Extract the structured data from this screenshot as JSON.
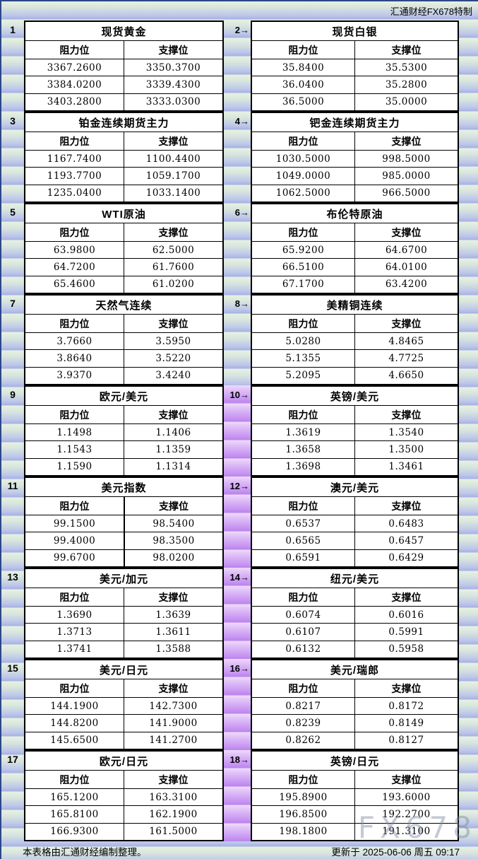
{
  "header": {
    "brand": "汇通财经FX678特制"
  },
  "labels": {
    "resistance": "阻力位",
    "support": "支撑位"
  },
  "footer": {
    "left": "本表格由汇通财经编制整理。",
    "updated": "更新于 2025-06-06 周五 09:17",
    "watermark": "FX678"
  },
  "colors": {
    "yellow_header": "#F7F28E",
    "blue_header_top": "#DFEAFC",
    "blue_header_bottom": "#9AB5E9",
    "purple_header": "#C79CEF",
    "gutter_purple": "#BB84EC",
    "background_green": "#E6F1E2",
    "background_blue": "#A7B2E5",
    "grid_line": "#000000",
    "watermark_gray": "#7E88A3"
  },
  "pairs": [
    {
      "left": {
        "num": "1",
        "title": "现货黄金",
        "style": "yellow",
        "rows": [
          [
            "3367.2600",
            "3350.3700"
          ],
          [
            "3384.0200",
            "3339.4300"
          ],
          [
            "3403.2800",
            "3333.0300"
          ]
        ]
      },
      "right": {
        "num": "2→",
        "title": "现货白银",
        "style": "yellow",
        "rows": [
          [
            "35.8400",
            "35.5300"
          ],
          [
            "36.0400",
            "35.2800"
          ],
          [
            "36.5000",
            "35.0000"
          ]
        ]
      }
    },
    {
      "left": {
        "num": "3",
        "title": "铂金连续期货主力",
        "style": "blue",
        "rows": [
          [
            "1167.7400",
            "1100.4400"
          ],
          [
            "1193.7700",
            "1059.1700"
          ],
          [
            "1235.0400",
            "1033.1400"
          ]
        ]
      },
      "right": {
        "num": "4→",
        "title": "钯金连续期货主力",
        "style": "blue",
        "rows": [
          [
            "1030.5000",
            "998.5000"
          ],
          [
            "1049.0000",
            "985.0000"
          ],
          [
            "1062.5000",
            "966.5000"
          ]
        ]
      }
    },
    {
      "left": {
        "num": "5",
        "title": "WTI原油",
        "style": "yellow",
        "rows": [
          [
            "63.9800",
            "62.5000"
          ],
          [
            "64.7200",
            "61.7600"
          ],
          [
            "65.4600",
            "61.0200"
          ]
        ]
      },
      "right": {
        "num": "6→",
        "title": "布伦特原油",
        "style": "yellow",
        "rows": [
          [
            "65.9200",
            "64.6700"
          ],
          [
            "66.5100",
            "64.0100"
          ],
          [
            "67.1700",
            "63.4200"
          ]
        ]
      }
    },
    {
      "left": {
        "num": "7",
        "title": "天然气连续",
        "style": "blue",
        "rows": [
          [
            "3.7660",
            "3.5950"
          ],
          [
            "3.8640",
            "3.5220"
          ],
          [
            "3.9370",
            "3.4240"
          ]
        ]
      },
      "right": {
        "num": "8→",
        "title": "美精铜连续",
        "style": "blue",
        "rows": [
          [
            "5.0280",
            "4.8465"
          ],
          [
            "5.1355",
            "4.7725"
          ],
          [
            "5.2095",
            "4.6650"
          ]
        ]
      }
    },
    {
      "left": {
        "num": "9",
        "title": "欧元/美元",
        "style": "purple",
        "rows": [
          [
            "1.1498",
            "1.1406"
          ],
          [
            "1.1543",
            "1.1359"
          ],
          [
            "1.1590",
            "1.1314"
          ]
        ]
      },
      "right": {
        "num": "10→",
        "title": "英镑/美元",
        "style": "purple",
        "rows": [
          [
            "1.3619",
            "1.3540"
          ],
          [
            "1.3658",
            "1.3500"
          ],
          [
            "1.3698",
            "1.3461"
          ]
        ]
      }
    },
    {
      "left": {
        "num": "11",
        "title": "美元指数",
        "style": "blue",
        "rows": [
          [
            "99.1500",
            "98.5400"
          ],
          [
            "99.4000",
            "98.3500"
          ],
          [
            "99.6700",
            "98.0200"
          ]
        ]
      },
      "right": {
        "num": "12→",
        "title": "澳元/美元",
        "style": "blue",
        "rows": [
          [
            "0.6537",
            "0.6483"
          ],
          [
            "0.6565",
            "0.6457"
          ],
          [
            "0.6591",
            "0.6429"
          ]
        ]
      }
    },
    {
      "left": {
        "num": "13",
        "title": "美元/加元",
        "style": "purple",
        "rows": [
          [
            "1.3690",
            "1.3639"
          ],
          [
            "1.3713",
            "1.3611"
          ],
          [
            "1.3741",
            "1.3588"
          ]
        ]
      },
      "right": {
        "num": "14→",
        "title": "纽元/美元",
        "style": "purple",
        "rows": [
          [
            "0.6074",
            "0.6016"
          ],
          [
            "0.6107",
            "0.5991"
          ],
          [
            "0.6132",
            "0.5958"
          ]
        ]
      }
    },
    {
      "left": {
        "num": "15",
        "title": "美元/日元",
        "style": "blue",
        "rows": [
          [
            "144.1900",
            "142.7300"
          ],
          [
            "144.8200",
            "141.9000"
          ],
          [
            "145.6500",
            "141.2700"
          ]
        ]
      },
      "right": {
        "num": "16→",
        "title": "美元/瑞郎",
        "style": "blue",
        "rows": [
          [
            "0.8217",
            "0.8172"
          ],
          [
            "0.8239",
            "0.8149"
          ],
          [
            "0.8262",
            "0.8127"
          ]
        ]
      }
    },
    {
      "left": {
        "num": "17",
        "title": "欧元/日元",
        "style": "purple",
        "rows": [
          [
            "165.1200",
            "163.3100"
          ],
          [
            "165.8100",
            "162.1900"
          ],
          [
            "166.9300",
            "161.5000"
          ]
        ]
      },
      "right": {
        "num": "18→",
        "title": "英镑/日元",
        "style": "purple",
        "rows": [
          [
            "195.8900",
            "193.6000"
          ],
          [
            "196.8500",
            "192.2700"
          ],
          [
            "198.1800",
            "191.3100"
          ]
        ]
      }
    }
  ]
}
